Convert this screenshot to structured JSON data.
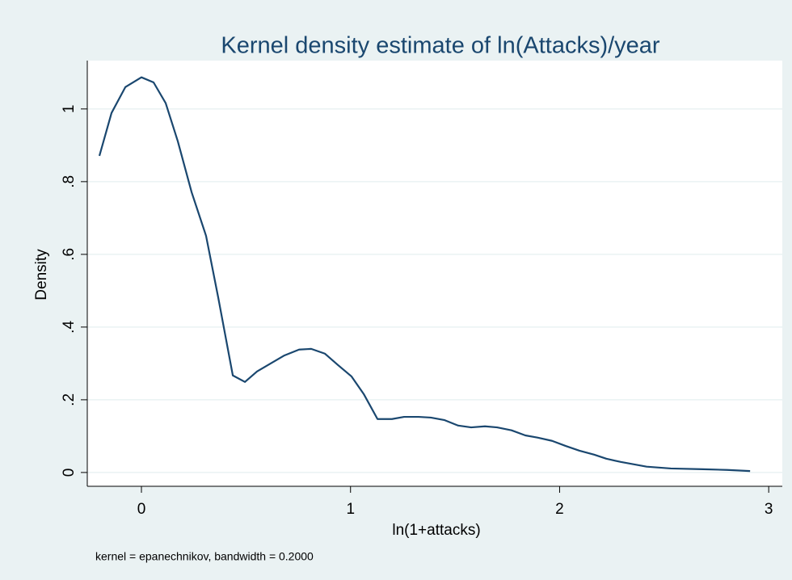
{
  "chart_data": {
    "type": "line",
    "title": "Kernel density estimate of ln(Attacks)/year",
    "xlabel": "ln(1+attacks)",
    "ylabel": "Density",
    "note": "kernel = epanechnikov, bandwidth = 0.2000",
    "color": "#1a476f",
    "grid": true,
    "x": [
      -0.201,
      -0.143,
      -0.077,
      0,
      0.058,
      0.116,
      0.174,
      0.24,
      0.309,
      0.367,
      0.437,
      0.495,
      0.553,
      0.618,
      0.684,
      0.754,
      0.812,
      0.877,
      0.939,
      1.005,
      1.063,
      1.129,
      1.198,
      1.256,
      1.326,
      1.384,
      1.45,
      1.515,
      1.577,
      1.643,
      1.701,
      1.77,
      1.836,
      1.894,
      1.964,
      2.029,
      2.095,
      2.165,
      2.223,
      2.292,
      2.416,
      2.532,
      2.686,
      2.802,
      2.911
    ],
    "values": [
      0.871,
      0.989,
      1.06,
      1.087,
      1.073,
      1.016,
      0.911,
      0.771,
      0.651,
      0.482,
      0.267,
      0.249,
      0.278,
      0.3,
      0.322,
      0.338,
      0.34,
      0.327,
      0.296,
      0.264,
      0.216,
      0.147,
      0.147,
      0.153,
      0.153,
      0.151,
      0.144,
      0.129,
      0.124,
      0.127,
      0.124,
      0.116,
      0.102,
      0.096,
      0.087,
      0.073,
      0.06,
      0.049,
      0.038,
      0.029,
      0.016,
      0.011,
      0.009,
      0.007,
      0.004
    ],
    "xlim": [
      -0.259,
      3.065
    ],
    "xticks": [
      0,
      1,
      2,
      3
    ],
    "ylim": [
      -0.038,
      1.133
    ],
    "yticks": [
      0,
      {
        "value": 0.2,
        "label": ".2"
      },
      {
        "value": 0.4,
        "label": ".4"
      },
      {
        "value": 0.6,
        "label": ".6"
      },
      {
        "value": 0.8,
        "label": ".8"
      },
      1
    ]
  }
}
